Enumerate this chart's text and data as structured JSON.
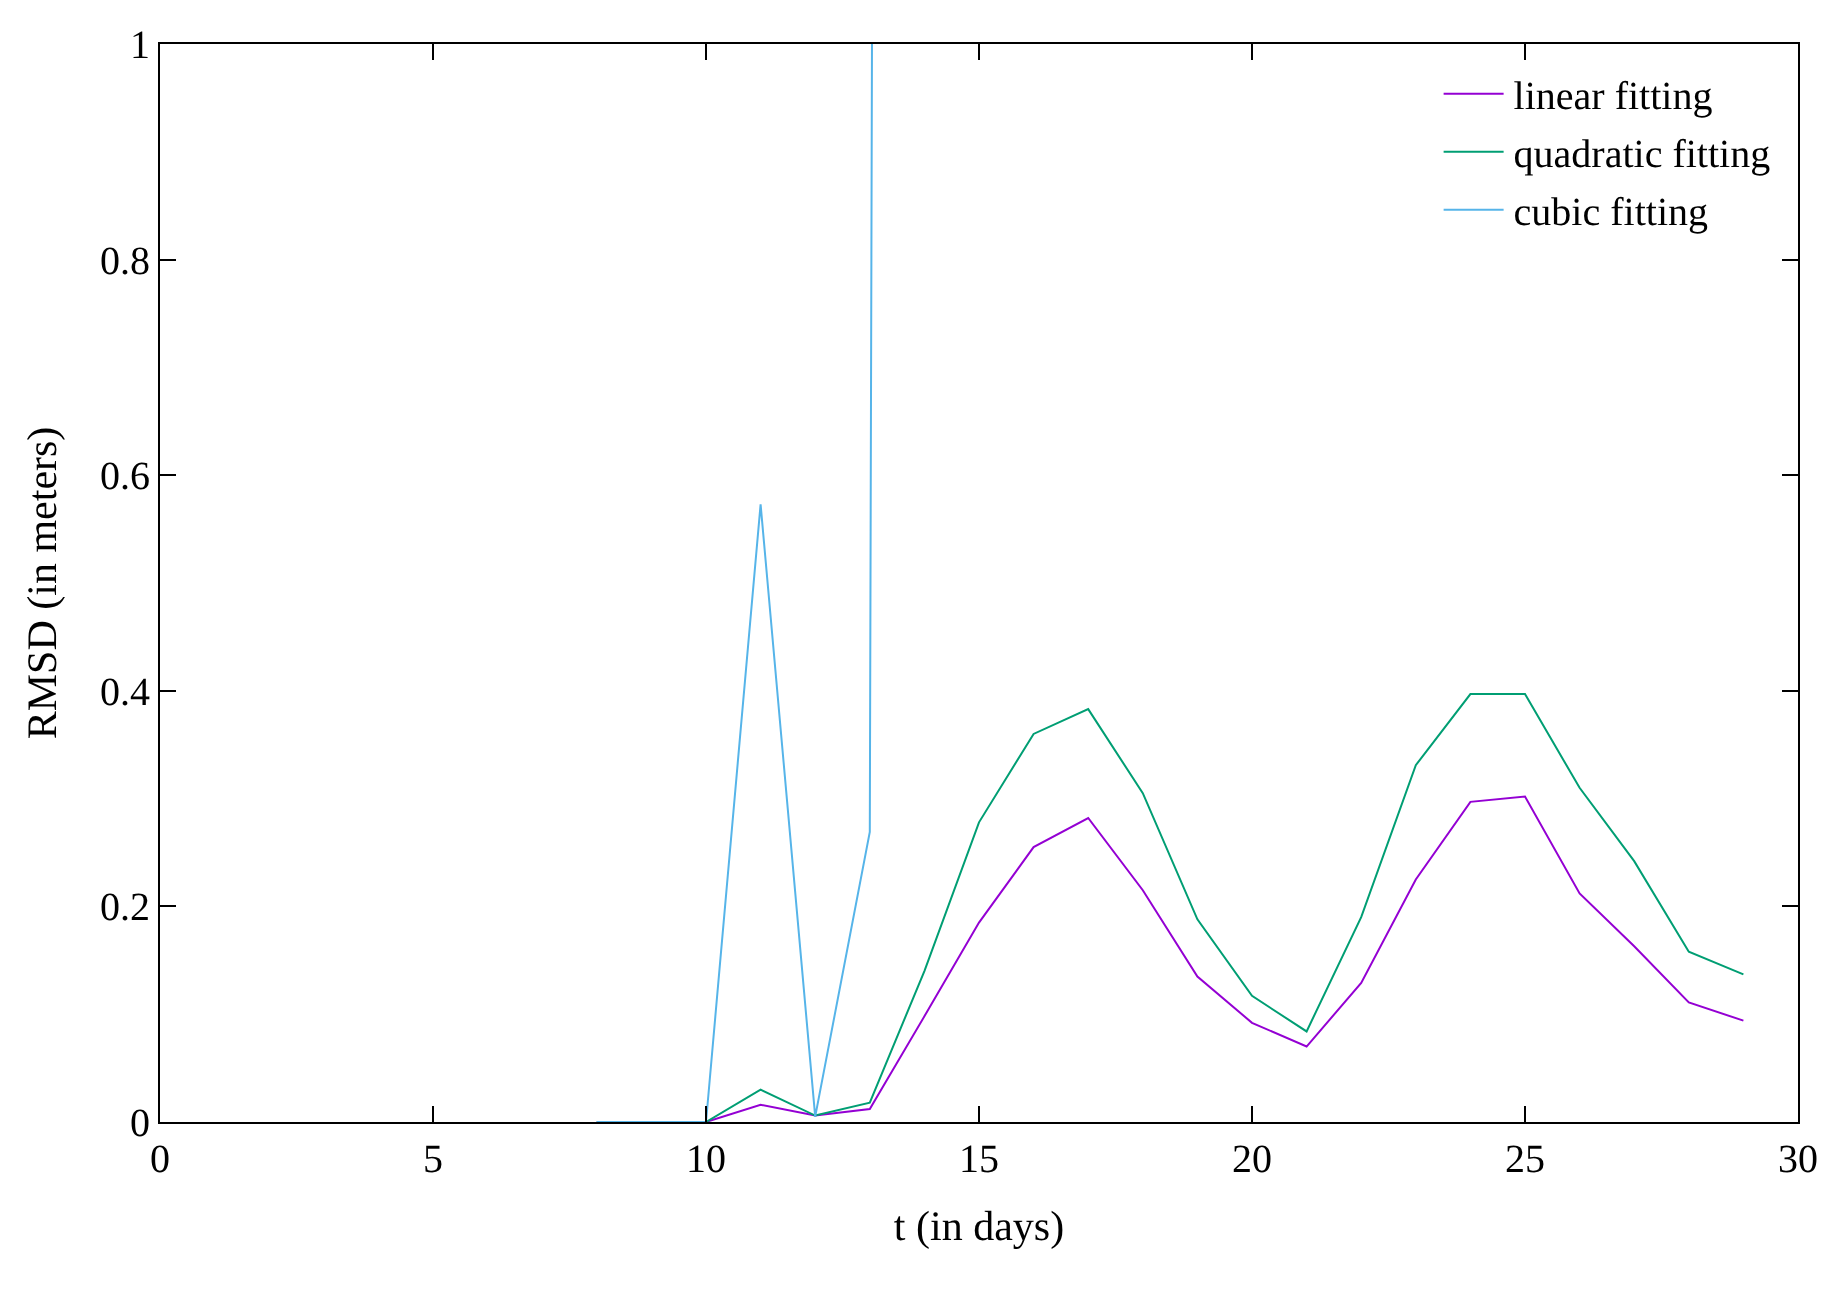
{
  "chart_data": {
    "type": "line",
    "xlabel": "t (in days)",
    "ylabel": "RMSD (in meters)",
    "x": [
      8,
      9,
      10,
      11,
      12,
      13,
      14,
      15,
      16,
      17,
      18,
      19,
      20,
      21,
      22,
      23,
      24,
      25,
      26,
      27,
      28,
      29
    ],
    "series": [
      {
        "name": "linear fitting",
        "color": "#9400d3",
        "values": [
          0,
          0,
          0,
          0.016,
          0.006,
          0.012,
          0.098,
          0.185,
          0.255,
          0.282,
          0.215,
          0.135,
          0.092,
          0.07,
          0.129,
          0.225,
          0.297,
          0.302,
          0.212,
          0.163,
          0.111,
          0.094
        ]
      },
      {
        "name": "quadratic fitting",
        "color": "#009e73",
        "values": [
          0,
          0,
          0,
          0.03,
          0.006,
          0.018,
          0.14,
          0.278,
          0.36,
          0.383,
          0.305,
          0.188,
          0.117,
          0.084,
          0.19,
          0.331,
          0.397,
          0.397,
          0.31,
          0.242,
          0.158,
          0.137
        ]
      },
      {
        "name": "cubic fitting",
        "color": "#56b4e9",
        "x": [
          8,
          9,
          10,
          11,
          12,
          13,
          13.04
        ],
        "values": [
          0,
          0,
          0,
          0.573,
          0.005,
          0.269,
          1
        ]
      }
    ],
    "xlim": [
      0,
      30
    ],
    "xticks": [
      0,
      5,
      10,
      15,
      20,
      25,
      30
    ],
    "ylim": [
      0,
      1
    ],
    "yticks": [
      0,
      0.2,
      0.4,
      0.6,
      0.8,
      1
    ],
    "legend": "top right",
    "marker": "none",
    "line_style": "solid"
  }
}
